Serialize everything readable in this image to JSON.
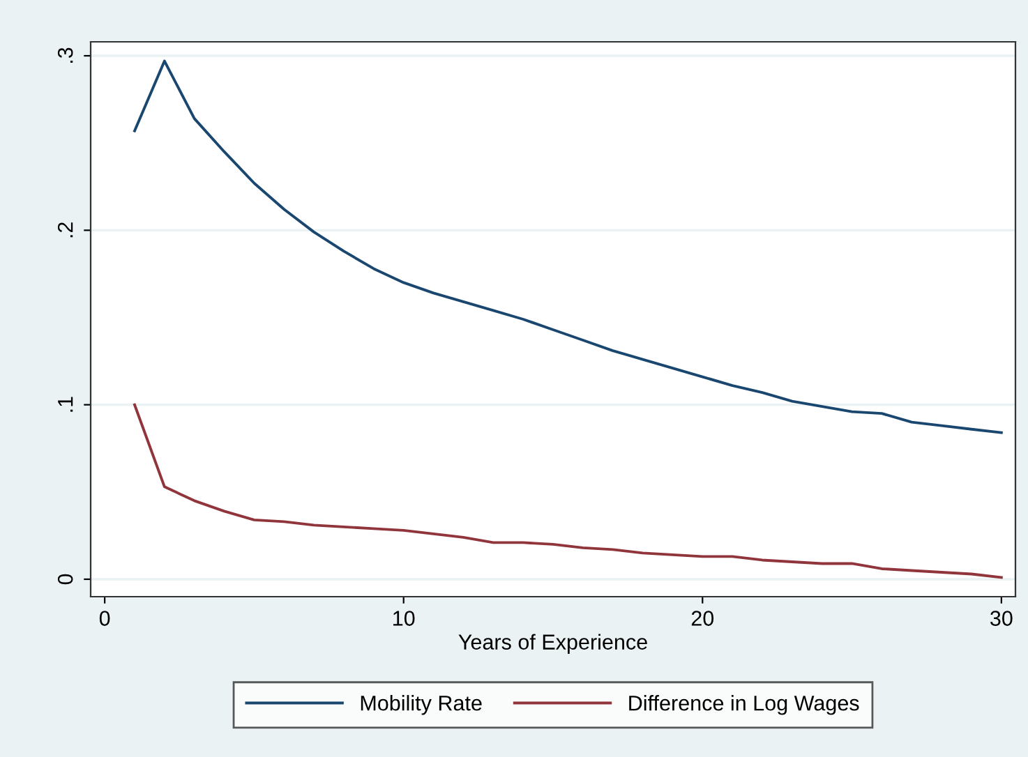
{
  "chart_data": {
    "type": "line",
    "xlabel": "Years of Experience",
    "x": [
      1,
      2,
      3,
      4,
      5,
      6,
      7,
      8,
      9,
      10,
      11,
      12,
      13,
      14,
      15,
      16,
      17,
      18,
      19,
      20,
      21,
      22,
      23,
      24,
      25,
      26,
      27,
      28,
      29,
      30
    ],
    "series": [
      {
        "name": "Mobility Rate",
        "color": "#1a476f",
        "values": [
          0.257,
          0.297,
          0.264,
          0.245,
          0.227,
          0.212,
          0.199,
          0.188,
          0.178,
          0.17,
          0.164,
          0.159,
          0.154,
          0.149,
          0.143,
          0.137,
          0.131,
          0.126,
          0.121,
          0.116,
          0.111,
          0.107,
          0.102,
          0.099,
          0.096,
          0.095,
          0.09,
          0.088,
          0.086,
          0.084
        ]
      },
      {
        "name": "Difference in Log Wages",
        "color": "#90353b",
        "values": [
          0.1,
          0.053,
          0.045,
          0.039,
          0.034,
          0.033,
          0.031,
          0.03,
          0.029,
          0.028,
          0.026,
          0.024,
          0.021,
          0.021,
          0.02,
          0.018,
          0.017,
          0.015,
          0.014,
          0.013,
          0.013,
          0.011,
          0.01,
          0.009,
          0.009,
          0.006,
          0.005,
          0.004,
          0.003,
          0.001
        ]
      }
    ],
    "xlim": [
      -0.47,
      30.47
    ],
    "ylim": [
      -0.01,
      0.308
    ],
    "xticks": [
      0,
      10,
      20,
      30
    ],
    "yticks": [
      {
        "value": 0,
        "label": "0"
      },
      {
        "value": 0.1,
        "label": ".1"
      },
      {
        "value": 0.2,
        "label": ".2"
      },
      {
        "value": 0.3,
        "label": ".3"
      }
    ],
    "grid": "y",
    "legend": "bottom",
    "marker": "none",
    "line_style": "solid"
  }
}
